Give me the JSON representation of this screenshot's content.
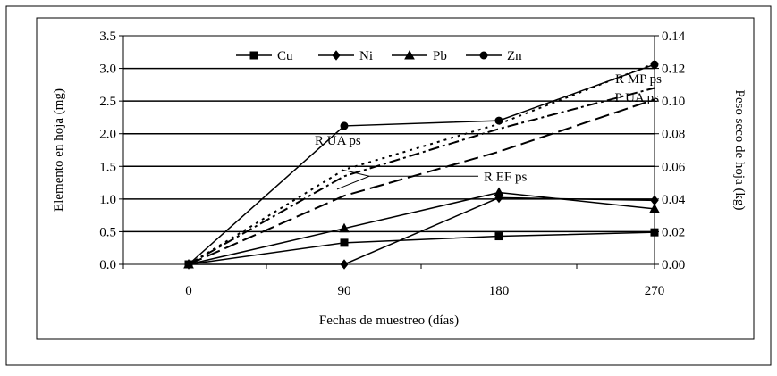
{
  "chart_data": {
    "type": "line",
    "title": "",
    "xlabel": "Fechas de muestreo (días)",
    "ylabel": "Elemento en hoja (mg)",
    "y2label": "Peso seco de hoja (kg)",
    "x": [
      0,
      90,
      180,
      270
    ],
    "x_ticks": [
      "0",
      "90",
      "180",
      "270"
    ],
    "ylim": [
      0,
      3.5
    ],
    "y_ticks": [
      "0.0",
      "0.5",
      "1.0",
      "1.5",
      "2.0",
      "2.5",
      "3.0",
      "3.5"
    ],
    "y2lim": [
      0,
      0.14
    ],
    "y2_ticks": [
      "0.00",
      "0.02",
      "0.04",
      "0.06",
      "0.08",
      "0.10",
      "0.12",
      "0.14"
    ],
    "grid": "horizontal",
    "legend_position": "top",
    "series": [
      {
        "name": "Cu",
        "marker": "square",
        "values": [
          0.0,
          0.33,
          0.43,
          0.49
        ]
      },
      {
        "name": "Ni",
        "marker": "diamond",
        "values": [
          0.0,
          0.0,
          1.02,
          0.98
        ]
      },
      {
        "name": "Pb",
        "marker": "triangle",
        "values": [
          0.0,
          0.55,
          1.1,
          0.85
        ]
      },
      {
        "name": "Zn",
        "marker": "circle",
        "values": [
          0.0,
          2.12,
          2.2,
          3.06
        ]
      }
    ],
    "dry_weight_lines": [
      {
        "label": "R MP ps",
        "dash": "dot",
        "values": [
          0.0,
          0.058,
          0.086,
          0.123
        ]
      },
      {
        "label": "R UA ps",
        "dash": "dashdot",
        "values": [
          0.0,
          0.054,
          0.083,
          0.108
        ]
      },
      {
        "label": "R EF ps",
        "dash": "dash",
        "values": [
          0.0,
          0.042,
          0.069,
          0.101
        ]
      }
    ],
    "annotations": [
      {
        "text": "R MP ps",
        "x": 270,
        "y": 2.83
      },
      {
        "text": "P UA ps",
        "x": 270,
        "y": 2.53
      },
      {
        "text": "R UA ps",
        "x": 90,
        "y": 1.9
      },
      {
        "text": "R EF ps",
        "x": 180,
        "y": 1.35
      }
    ]
  }
}
